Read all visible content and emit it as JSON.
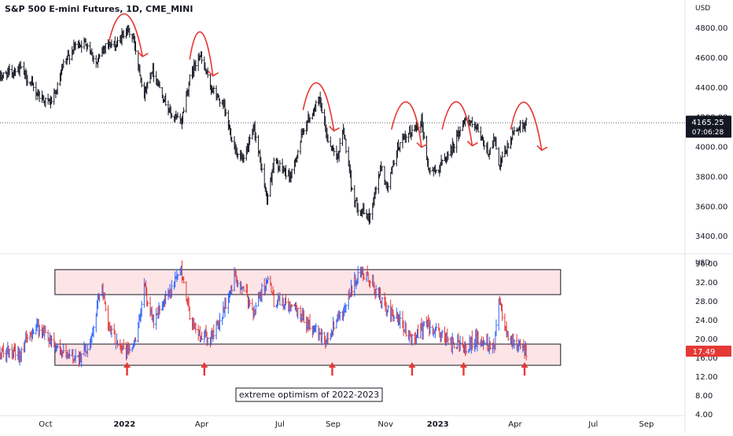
{
  "chart_data": [
    {
      "type": "bar",
      "title": "S&P 500 E-mini Futures, 1D, CME_MINI",
      "currency_label": "USD",
      "y_ticks": [
        3400,
        3600,
        3800,
        4000,
        4200,
        4400,
        4600,
        4800
      ],
      "y_tick_labels": [
        "3400.00",
        "3600.00",
        "3800.00",
        "4000.00",
        "4200.00",
        "4400.00",
        "4600.00",
        "4800.00"
      ],
      "ylim": [
        3290,
        4990
      ],
      "last_price": {
        "value": 4165.25,
        "label": "4165.25",
        "countdown": "07:06:28",
        "color": "#131722"
      },
      "x_ticks": [
        "Oct",
        "2022",
        "Apr",
        "Jul",
        "Sep",
        "Nov",
        "2023",
        "Apr",
        "Jul",
        "Sep"
      ],
      "x_tick_dates": [
        "2021-10-01",
        "2022-01-01",
        "2022-04-01",
        "2022-07-01",
        "2022-09-01",
        "2022-11-01",
        "2023-01-01",
        "2023-04-01",
        "2023-07-01",
        "2023-09-01"
      ],
      "x_range": [
        "2021-08-09",
        "2023-10-15"
      ],
      "price_path": [
        [
          "2021-08-09",
          4470
        ],
        [
          "2021-08-18",
          4500
        ],
        [
          "2021-09-02",
          4530
        ],
        [
          "2021-09-20",
          4370
        ],
        [
          "2021-10-04",
          4300
        ],
        [
          "2021-10-12",
          4340
        ],
        [
          "2021-10-22",
          4550
        ],
        [
          "2021-11-05",
          4690
        ],
        [
          "2021-11-18",
          4700
        ],
        [
          "2021-11-30",
          4560
        ],
        [
          "2021-12-10",
          4700
        ],
        [
          "2021-12-22",
          4680
        ],
        [
          "2022-01-04",
          4800
        ],
        [
          "2022-01-12",
          4720
        ],
        [
          "2022-01-24",
          4350
        ],
        [
          "2022-02-02",
          4530
        ],
        [
          "2022-02-24",
          4220
        ],
        [
          "2022-03-08",
          4170
        ],
        [
          "2022-03-18",
          4460
        ],
        [
          "2022-03-29",
          4630
        ],
        [
          "2022-04-12",
          4400
        ],
        [
          "2022-04-26",
          4280
        ],
        [
          "2022-05-09",
          4000
        ],
        [
          "2022-05-20",
          3900
        ],
        [
          "2022-06-01",
          4130
        ],
        [
          "2022-06-16",
          3650
        ],
        [
          "2022-06-24",
          3900
        ],
        [
          "2022-07-14",
          3800
        ],
        [
          "2022-07-29",
          4130
        ],
        [
          "2022-08-16",
          4320
        ],
        [
          "2022-08-26",
          4050
        ],
        [
          "2022-09-06",
          3930
        ],
        [
          "2022-09-13",
          4120
        ],
        [
          "2022-09-23",
          3700
        ],
        [
          "2022-09-30",
          3600
        ],
        [
          "2022-10-13",
          3520
        ],
        [
          "2022-10-27",
          3880
        ],
        [
          "2022-11-03",
          3720
        ],
        [
          "2022-11-15",
          4000
        ],
        [
          "2022-12-01",
          4100
        ],
        [
          "2022-12-13",
          4180
        ],
        [
          "2022-12-21",
          3850
        ],
        [
          "2022-12-30",
          3840
        ],
        [
          "2023-01-18",
          4000
        ],
        [
          "2023-02-02",
          4200
        ],
        [
          "2023-02-17",
          4100
        ],
        [
          "2023-03-01",
          3960
        ],
        [
          "2023-03-08",
          4060
        ],
        [
          "2023-03-13",
          3860
        ],
        [
          "2023-03-31",
          4110
        ],
        [
          "2023-04-14",
          4165
        ]
      ],
      "annotations": {
        "peak_arcs": [
          {
            "start": "2021-12-14",
            "peak": "2022-01-04",
            "end": "2022-01-22",
            "top": 4900,
            "arrow_tip": 4610
          },
          {
            "start": "2022-03-18",
            "peak": "2022-04-01",
            "end": "2022-04-14",
            "top": 4780,
            "arrow_tip": 4480
          },
          {
            "start": "2022-07-28",
            "peak": "2022-08-16",
            "end": "2022-09-02",
            "top": 4440,
            "arrow_tip": 4110
          },
          {
            "start": "2022-11-08",
            "peak": "2022-11-30",
            "end": "2022-12-13",
            "top": 4310,
            "arrow_tip": 4000
          },
          {
            "start": "2023-01-06",
            "peak": "2023-01-27",
            "end": "2023-02-10",
            "top": 4310,
            "arrow_tip": 4010
          },
          {
            "start": "2023-03-27",
            "peak": "2023-04-14",
            "end": "2023-05-02",
            "top": 4310,
            "arrow_tip": 3980
          }
        ],
        "arc_color": "#e53935"
      }
    },
    {
      "type": "bar",
      "currency_label": "USD",
      "y_ticks": [
        4,
        8,
        12,
        16,
        20,
        24,
        28,
        32,
        36
      ],
      "y_tick_labels": [
        "4.00",
        "8.00",
        "12.00",
        "16.00",
        "20.00",
        "24.00",
        "28.00",
        "32.00",
        "36.00"
      ],
      "ylim": [
        4,
        38
      ],
      "last_value": {
        "value": 17.49,
        "label": "17.49",
        "color": "#e53935"
      },
      "path": [
        [
          "2021-08-09",
          17
        ],
        [
          "2021-08-30",
          16.5
        ],
        [
          "2021-09-20",
          23
        ],
        [
          "2021-10-01",
          21
        ],
        [
          "2021-10-12",
          19
        ],
        [
          "2021-10-26",
          16
        ],
        [
          "2021-11-12",
          16.5
        ],
        [
          "2021-11-24",
          20
        ],
        [
          "2021-12-01",
          28
        ],
        [
          "2021-12-06",
          32
        ],
        [
          "2021-12-13",
          22
        ],
        [
          "2021-12-22",
          20
        ],
        [
          "2022-01-03",
          17
        ],
        [
          "2022-01-14",
          19.5
        ],
        [
          "2022-01-24",
          31
        ],
        [
          "2022-02-04",
          24
        ],
        [
          "2022-02-24",
          30
        ],
        [
          "2022-03-08",
          35
        ],
        [
          "2022-03-18",
          25
        ],
        [
          "2022-03-28",
          21
        ],
        [
          "2022-04-11",
          20
        ],
        [
          "2022-04-25",
          25
        ],
        [
          "2022-05-09",
          33
        ],
        [
          "2022-05-20",
          30
        ],
        [
          "2022-06-01",
          26
        ],
        [
          "2022-06-16",
          33
        ],
        [
          "2022-06-24",
          28
        ],
        [
          "2022-07-14",
          27
        ],
        [
          "2022-07-29",
          24
        ],
        [
          "2022-08-16",
          21
        ],
        [
          "2022-08-26",
          20
        ],
        [
          "2022-09-06",
          25
        ],
        [
          "2022-09-13",
          26
        ],
        [
          "2022-09-29",
          33
        ],
        [
          "2022-10-13",
          33
        ],
        [
          "2022-10-27",
          28
        ],
        [
          "2022-11-03",
          26
        ],
        [
          "2022-11-15",
          24
        ],
        [
          "2022-12-01",
          20
        ],
        [
          "2022-12-13",
          22
        ],
        [
          "2022-12-21",
          23
        ],
        [
          "2023-01-03",
          21
        ],
        [
          "2023-01-18",
          19
        ],
        [
          "2023-02-02",
          18.5
        ],
        [
          "2023-02-17",
          20
        ],
        [
          "2023-03-01",
          19
        ],
        [
          "2023-03-08",
          19
        ],
        [
          "2023-03-13",
          29
        ],
        [
          "2023-03-22",
          22
        ],
        [
          "2023-03-31",
          19
        ],
        [
          "2023-04-14",
          17.5
        ]
      ],
      "upper_zone": {
        "from": "2021-10-12",
        "to": "2023-05-24",
        "low": 29.5,
        "high": 34.8
      },
      "lower_zone": {
        "from": "2021-10-12",
        "to": "2023-05-24",
        "low": 14.5,
        "high": 19
      },
      "zone_fill": "#fde4e6",
      "bottom_arrows": [
        "2022-01-04",
        "2022-04-04",
        "2022-08-31",
        "2022-12-02",
        "2023-01-31",
        "2023-04-12"
      ],
      "annotation_text": "extreme optimism of 2022-2023",
      "up_color": "#2962ff",
      "down_color": "#e53935"
    }
  ]
}
